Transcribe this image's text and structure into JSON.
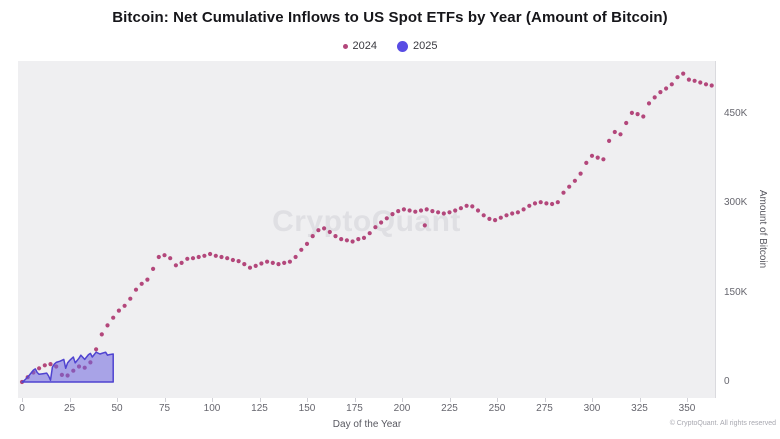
{
  "title": "Bitcoin: Net Cumulative Inflows to US Spot ETFs by Year (Amount of Bitcoin)",
  "watermark": "CryptoQuant",
  "copyright": "© CryptoQuant. All rights reserved",
  "colors": {
    "series_2024": "#b3477b",
    "series_2025_line": "#4f43d0",
    "series_2025_fill": "rgba(110,100,223,0.55)",
    "plot_background": "#efeff1"
  },
  "legend": {
    "items": [
      {
        "label": "2024",
        "color": "#b3477b",
        "marker": "small-dot"
      },
      {
        "label": "2025",
        "color": "#584ce4",
        "marker": "circle"
      }
    ]
  },
  "chart_data": {
    "type": "line",
    "title": "Bitcoin: Net Cumulative Inflows to US Spot ETFs by Year (Amount of Bitcoin)",
    "xlabel": "Day of the Year",
    "ylabel": "Amount of Bitcoin",
    "xlim": [
      0,
      366
    ],
    "ylim": [
      0,
      540000
    ],
    "grid": false,
    "legend_position": "top-center",
    "x_ticks": [
      0,
      25,
      50,
      75,
      100,
      125,
      150,
      175,
      200,
      225,
      250,
      275,
      300,
      325,
      350
    ],
    "y_tick_labels": [
      "0",
      "150K",
      "300K",
      "450K"
    ],
    "y_tick_values": [
      0,
      150000,
      300000,
      450000
    ],
    "isolated_point_2024": [
      212,
      263000
    ],
    "series": [
      {
        "name": "2024",
        "style": "dotted",
        "color": "#b3477b",
        "points": [
          [
            0,
            0
          ],
          [
            3,
            8000
          ],
          [
            6,
            16000
          ],
          [
            9,
            23000
          ],
          [
            12,
            28000
          ],
          [
            15,
            30000
          ],
          [
            18,
            26000
          ],
          [
            21,
            12000
          ],
          [
            24,
            11000
          ],
          [
            27,
            19000
          ],
          [
            30,
            26000
          ],
          [
            33,
            24000
          ],
          [
            36,
            33000
          ],
          [
            39,
            55000
          ],
          [
            42,
            80000
          ],
          [
            45,
            95000
          ],
          [
            48,
            108000
          ],
          [
            51,
            120000
          ],
          [
            54,
            128000
          ],
          [
            57,
            140000
          ],
          [
            60,
            155000
          ],
          [
            63,
            165000
          ],
          [
            66,
            172000
          ],
          [
            69,
            190000
          ],
          [
            72,
            210000
          ],
          [
            75,
            213000
          ],
          [
            78,
            208000
          ],
          [
            81,
            196000
          ],
          [
            84,
            200000
          ],
          [
            87,
            207000
          ],
          [
            90,
            208000
          ],
          [
            93,
            210000
          ],
          [
            96,
            212000
          ],
          [
            99,
            215000
          ],
          [
            102,
            212000
          ],
          [
            105,
            210000
          ],
          [
            108,
            208000
          ],
          [
            111,
            205000
          ],
          [
            114,
            203000
          ],
          [
            117,
            198000
          ],
          [
            120,
            192000
          ],
          [
            123,
            195000
          ],
          [
            126,
            199000
          ],
          [
            129,
            202000
          ],
          [
            132,
            200000
          ],
          [
            135,
            198000
          ],
          [
            138,
            200000
          ],
          [
            141,
            202000
          ],
          [
            144,
            210000
          ],
          [
            147,
            222000
          ],
          [
            150,
            232000
          ],
          [
            153,
            245000
          ],
          [
            156,
            255000
          ],
          [
            159,
            258000
          ],
          [
            162,
            252000
          ],
          [
            165,
            245000
          ],
          [
            168,
            240000
          ],
          [
            171,
            238000
          ],
          [
            174,
            236000
          ],
          [
            177,
            240000
          ],
          [
            180,
            242000
          ],
          [
            183,
            250000
          ],
          [
            186,
            260000
          ],
          [
            189,
            268000
          ],
          [
            192,
            275000
          ],
          [
            195,
            282000
          ],
          [
            198,
            287000
          ],
          [
            201,
            290000
          ],
          [
            204,
            288000
          ],
          [
            207,
            286000
          ],
          [
            210,
            288000
          ],
          [
            213,
            290000
          ],
          [
            216,
            287000
          ],
          [
            219,
            285000
          ],
          [
            222,
            283000
          ],
          [
            225,
            285000
          ],
          [
            228,
            288000
          ],
          [
            231,
            292000
          ],
          [
            234,
            296000
          ],
          [
            237,
            295000
          ],
          [
            240,
            288000
          ],
          [
            243,
            280000
          ],
          [
            246,
            274000
          ],
          [
            249,
            272000
          ],
          [
            252,
            276000
          ],
          [
            255,
            280000
          ],
          [
            258,
            283000
          ],
          [
            261,
            285000
          ],
          [
            264,
            290000
          ],
          [
            267,
            296000
          ],
          [
            270,
            300000
          ],
          [
            273,
            302000
          ],
          [
            276,
            300000
          ],
          [
            279,
            299000
          ],
          [
            282,
            302000
          ],
          [
            285,
            318000
          ],
          [
            288,
            328000
          ],
          [
            291,
            338000
          ],
          [
            294,
            350000
          ],
          [
            297,
            368000
          ],
          [
            300,
            380000
          ],
          [
            303,
            377000
          ],
          [
            306,
            374000
          ],
          [
            309,
            405000
          ],
          [
            312,
            420000
          ],
          [
            315,
            416000
          ],
          [
            318,
            435000
          ],
          [
            321,
            452000
          ],
          [
            324,
            450000
          ],
          [
            327,
            446000
          ],
          [
            330,
            468000
          ],
          [
            333,
            478000
          ],
          [
            336,
            487000
          ],
          [
            339,
            493000
          ],
          [
            342,
            500000
          ],
          [
            345,
            512000
          ],
          [
            348,
            518000
          ],
          [
            351,
            508000
          ],
          [
            354,
            506000
          ],
          [
            357,
            503000
          ],
          [
            360,
            500000
          ],
          [
            363,
            498000
          ]
        ]
      },
      {
        "name": "2025",
        "style": "area",
        "color": "#4f43d0",
        "fill": "rgba(110,100,223,0.55)",
        "points": [
          [
            0,
            0
          ],
          [
            1,
            2000
          ],
          [
            2,
            5000
          ],
          [
            4,
            12000
          ],
          [
            6,
            20000
          ],
          [
            7,
            22000
          ],
          [
            8,
            16000
          ],
          [
            9,
            13000
          ],
          [
            11,
            14000
          ],
          [
            13,
            15000
          ],
          [
            14,
            10000
          ],
          [
            15,
            3000
          ],
          [
            16,
            25000
          ],
          [
            17,
            30000
          ],
          [
            18,
            33000
          ],
          [
            20,
            35000
          ],
          [
            22,
            38000
          ],
          [
            23,
            23000
          ],
          [
            24,
            32000
          ],
          [
            25,
            36000
          ],
          [
            27,
            42000
          ],
          [
            28,
            32000
          ],
          [
            30,
            40000
          ],
          [
            31,
            45000
          ],
          [
            33,
            38000
          ],
          [
            35,
            46000
          ],
          [
            36,
            48000
          ],
          [
            37,
            42000
          ],
          [
            39,
            50000
          ],
          [
            41,
            47000
          ],
          [
            42,
            48000
          ],
          [
            44,
            50000
          ],
          [
            45,
            45000
          ],
          [
            46,
            46000
          ],
          [
            48,
            47000
          ]
        ]
      }
    ]
  }
}
